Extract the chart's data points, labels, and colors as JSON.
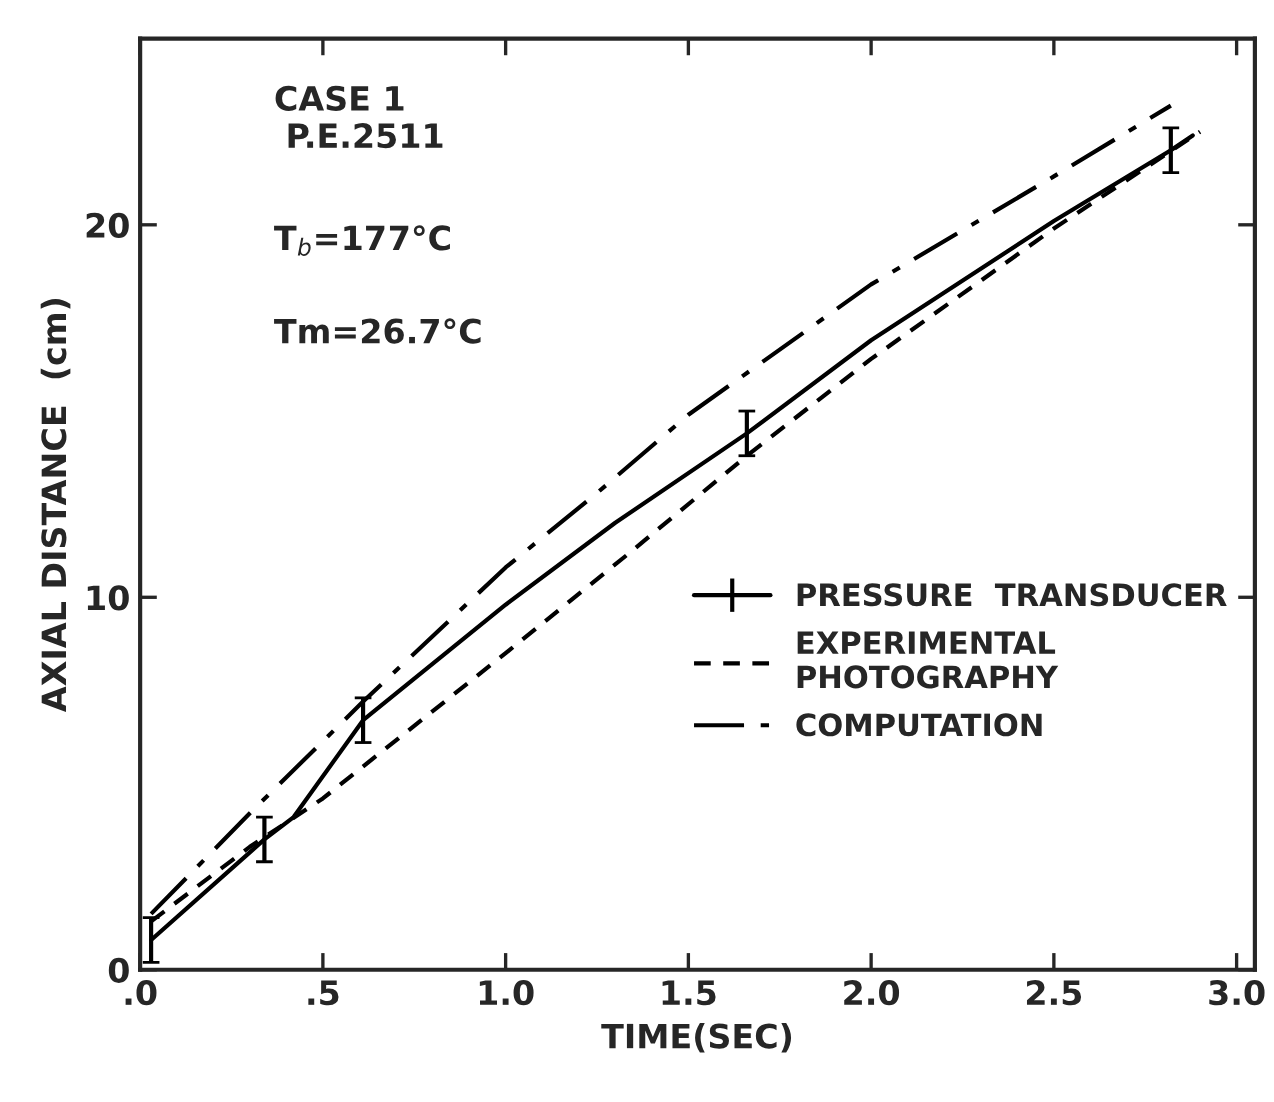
{
  "chart_data": {
    "type": "line",
    "xlabel": "TIME(SEC)",
    "ylabel": "AXIAL DISTANCE  (cm)",
    "xlim": [
      0,
      3.05
    ],
    "ylim": [
      0,
      25
    ],
    "xticks": [
      {
        "value": 0,
        "label": ".0"
      },
      {
        "value": 0.5,
        "label": ".5"
      },
      {
        "value": 1.0,
        "label": "1.0"
      },
      {
        "value": 1.5,
        "label": "1.5"
      },
      {
        "value": 2.0,
        "label": "2.0"
      },
      {
        "value": 2.5,
        "label": "2.5"
      },
      {
        "value": 3.0,
        "label": "3.0"
      }
    ],
    "yticks": [
      0,
      10,
      20
    ],
    "grid": false,
    "legend": "right",
    "marker": "none",
    "series": [
      {
        "name": "PRESSURE  TRANSDUCER",
        "color": "#000000",
        "line_style": "solid",
        "x": [
          0.03,
          0.34,
          0.42,
          0.61,
          1.0,
          1.3,
          1.66,
          2.0,
          2.5,
          2.82,
          2.88
        ],
        "values": [
          0.8,
          3.5,
          4.1,
          6.7,
          9.8,
          12.0,
          14.4,
          16.9,
          20.1,
          22.0,
          22.4
        ],
        "errors": [
          0.6,
          0.6,
          null,
          0.6,
          null,
          null,
          0.6,
          null,
          null,
          0.6,
          null
        ]
      },
      {
        "name": "EXPERIMENTAL\nPHOTOGRAPHY",
        "color": "#000000",
        "line_style": "dashed",
        "x": [
          0.03,
          0.3,
          0.5,
          1.0,
          1.34,
          1.66,
          2.0,
          2.5,
          2.9
        ],
        "values": [
          1.3,
          3.3,
          4.6,
          8.5,
          11.2,
          13.8,
          16.4,
          19.9,
          22.5
        ]
      },
      {
        "name": "COMPUTATION",
        "color": "#000000",
        "line_style": "dashdot",
        "x": [
          0.03,
          0.3,
          0.61,
          1.0,
          1.25,
          1.5,
          2.0,
          2.5,
          2.82
        ],
        "values": [
          1.5,
          4.2,
          7.2,
          10.8,
          12.8,
          14.9,
          18.4,
          21.3,
          23.2
        ]
      }
    ],
    "annotations": [
      "CASE 1\n P.E.2511",
      "T$_{b}$=177°C",
      "Tm=26.7°C"
    ]
  }
}
